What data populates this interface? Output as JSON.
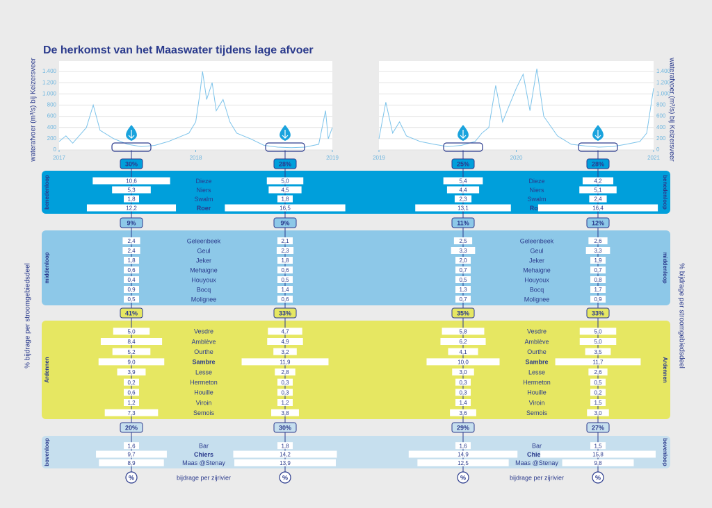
{
  "title": "De herkomst van het Maaswater tijdens lage afvoer",
  "side_label": "% bijdrage per stroomgebiedsdeel",
  "footer": {
    "symbol": "%",
    "label": "bijdrage per zijrivier"
  },
  "chart_data": [
    {
      "type": "line",
      "ylabel": "waterafvoer (m³/s) bij Keizersveer",
      "color": "#7cc3ea",
      "grid": true,
      "xlim": [
        2017,
        2019
      ],
      "xticks": [
        2017,
        2018,
        2019
      ],
      "ylim": [
        0,
        1400
      ],
      "yticks": [
        0,
        200,
        400,
        600,
        800,
        {
          "value": 1000,
          "label": "1.000"
        },
        {
          "value": 1200,
          "label": "1.200"
        },
        {
          "value": 1400,
          "label": "1.400"
        }
      ],
      "x": [
        2017.0,
        2017.05,
        2017.1,
        2017.2,
        2017.25,
        2017.3,
        2017.4,
        2017.5,
        2017.6,
        2017.7,
        2017.8,
        2017.9,
        2017.95,
        2018.0,
        2018.03,
        2018.05,
        2018.08,
        2018.12,
        2018.15,
        2018.2,
        2018.25,
        2018.3,
        2018.4,
        2018.5,
        2018.6,
        2018.7,
        2018.8,
        2018.9,
        2018.95,
        2018.97,
        2019.0
      ],
      "values": [
        150,
        250,
        120,
        400,
        800,
        350,
        200,
        100,
        60,
        80,
        150,
        250,
        300,
        500,
        1000,
        1400,
        900,
        1200,
        700,
        900,
        500,
        300,
        200,
        80,
        50,
        40,
        50,
        100,
        700,
        200,
        400
      ]
    },
    {
      "type": "line",
      "ylabel": "waterafvoer (m³/s) bij Keizersveer",
      "color": "#7cc3ea",
      "grid": true,
      "xlim": [
        2019,
        2021
      ],
      "xticks": [
        2019,
        2020,
        2021
      ],
      "ylim": [
        0,
        1400
      ],
      "yticks": [
        0,
        200,
        400,
        600,
        800,
        {
          "value": 1000,
          "label": "1.000"
        },
        {
          "value": 1200,
          "label": "1.200"
        },
        {
          "value": 1400,
          "label": "1.400"
        }
      ],
      "x": [
        2019.0,
        2019.05,
        2019.1,
        2019.15,
        2019.2,
        2019.3,
        2019.4,
        2019.5,
        2019.6,
        2019.7,
        2019.75,
        2019.8,
        2019.85,
        2019.9,
        2019.95,
        2020.0,
        2020.05,
        2020.1,
        2020.15,
        2020.2,
        2020.3,
        2020.4,
        2020.5,
        2020.6,
        2020.7,
        2020.8,
        2020.9,
        2020.95,
        2021.0
      ],
      "values": [
        200,
        850,
        300,
        500,
        250,
        150,
        100,
        60,
        80,
        150,
        300,
        400,
        1150,
        500,
        800,
        1100,
        1350,
        700,
        1450,
        600,
        250,
        100,
        70,
        50,
        60,
        100,
        150,
        300,
        1100
      ]
    }
  ],
  "sections": [
    {
      "name": "benedenloop",
      "color": "#009fdb",
      "side": "both",
      "totals": {
        "values": [
          30,
          28,
          25,
          28
        ],
        "value_labels": [
          "30%",
          "28%",
          "25%",
          "28%"
        ]
      },
      "rivers": [
        {
          "name": "Dieze",
          "values": [
            10.6,
            5.0,
            5.4,
            4.2
          ],
          "value_labels": [
            "10,6",
            "5,0",
            "5,4",
            "4,2"
          ]
        },
        {
          "name": "Niers",
          "values": [
            5.3,
            4.5,
            4.4,
            5.1
          ],
          "value_labels": [
            "5,3",
            "4,5",
            "4,4",
            "5,1"
          ]
        },
        {
          "name": "Swalm",
          "values": [
            1.8,
            1.8,
            2.3,
            2.4
          ],
          "value_labels": [
            "1,8",
            "1,8",
            "2,3",
            "2,4"
          ]
        },
        {
          "name": "Roer",
          "emphasis": true,
          "values": [
            12.2,
            16.5,
            13.1,
            16.4
          ],
          "value_labels": [
            "12,2",
            "16,5",
            "13,1",
            "16,4"
          ]
        }
      ]
    },
    {
      "name": "middenloop",
      "color": "#8dc8e8",
      "side": "both",
      "totals": {
        "values": [
          9,
          9,
          11,
          12
        ],
        "value_labels": [
          "9%",
          "9%",
          "11%",
          "12%"
        ]
      },
      "rivers": [
        {
          "name": "Geleenbeek",
          "values": [
            2.4,
            2.1,
            2.5,
            2.6
          ],
          "value_labels": [
            "2,4",
            "2,1",
            "2,5",
            "2,6"
          ]
        },
        {
          "name": "Geul",
          "values": [
            2.4,
            2.3,
            3.3,
            3.3
          ],
          "value_labels": [
            "2,4",
            "2,3",
            "3,3",
            "3,3"
          ]
        },
        {
          "name": "Jeker",
          "values": [
            1.8,
            1.8,
            2.0,
            1.9
          ],
          "value_labels": [
            "1,8",
            "1,8",
            "2,0",
            "1,9"
          ]
        },
        {
          "name": "Mehaigne",
          "values": [
            0.6,
            0.6,
            0.7,
            0.7
          ],
          "value_labels": [
            "0,6",
            "0,6",
            "0,7",
            "0,7"
          ]
        },
        {
          "name": "Houyoux",
          "values": [
            0.4,
            0.5,
            0.5,
            0.8
          ],
          "value_labels": [
            "0,4",
            "0,5",
            "0,5",
            "0,8"
          ]
        },
        {
          "name": "Bocq",
          "values": [
            0.9,
            1.4,
            1.3,
            1.7
          ],
          "value_labels": [
            "0,9",
            "1,4",
            "1,3",
            "1,7"
          ]
        },
        {
          "name": "Molignee",
          "values": [
            0.5,
            0.6,
            0.7,
            0.9
          ],
          "value_labels": [
            "0,5",
            "0,6",
            "0,7",
            "0,9"
          ]
        }
      ]
    },
    {
      "name": "Ardennen",
      "color": "#e6e762",
      "side": "both",
      "totals": {
        "values": [
          41,
          33,
          35,
          33
        ],
        "value_labels": [
          "41%",
          "33%",
          "35%",
          "33%"
        ]
      },
      "rivers": [
        {
          "name": "Vesdre",
          "values": [
            5.0,
            4.7,
            5.8,
            5.0
          ],
          "value_labels": [
            "5,0",
            "4,7",
            "5,8",
            "5,0"
          ]
        },
        {
          "name": "Amblève",
          "values": [
            8.4,
            4.9,
            6.2,
            5.0
          ],
          "value_labels": [
            "8,4",
            "4,9",
            "6,2",
            "5,0"
          ]
        },
        {
          "name": "Ourthe",
          "values": [
            5.2,
            3.2,
            4.1,
            3.5
          ],
          "value_labels": [
            "5,2",
            "3,2",
            "4,1",
            "3,5"
          ]
        },
        {
          "name": "Sambre",
          "emphasis": true,
          "values": [
            9.0,
            11.9,
            10.0,
            11.7
          ],
          "value_labels": [
            "9,0",
            "11,9",
            "10,0",
            "11,7"
          ]
        },
        {
          "name": "Lesse",
          "values": [
            3.9,
            2.8,
            3.0,
            2.6
          ],
          "value_labels": [
            "3,9",
            "2,8",
            "3,0",
            "2,6"
          ]
        },
        {
          "name": "Hermeton",
          "values": [
            0.2,
            0.3,
            0.3,
            0.5
          ],
          "value_labels": [
            "0,2",
            "0,3",
            "0,3",
            "0,5"
          ]
        },
        {
          "name": "Houille",
          "values": [
            0.6,
            0.3,
            0.3,
            0.2
          ],
          "value_labels": [
            "0,6",
            "0,3",
            "0,3",
            "0,2"
          ]
        },
        {
          "name": "Viroin",
          "values": [
            1.2,
            1.2,
            1.4,
            1.5
          ],
          "value_labels": [
            "1,2",
            "1,2",
            "1,4",
            "1,5"
          ]
        },
        {
          "name": "Semois",
          "values": [
            7.3,
            3.8,
            3.6,
            3.0
          ],
          "value_labels": [
            "7,3",
            "3,8",
            "3,6",
            "3,0"
          ]
        }
      ]
    },
    {
      "name": "bovenloop",
      "color": "#c6dfee",
      "side": "both",
      "totals": {
        "values": [
          20,
          30,
          29,
          27
        ],
        "value_labels": [
          "20%",
          "30%",
          "29%",
          "27%"
        ]
      },
      "rivers": [
        {
          "name": "Bar",
          "values": [
            1.6,
            1.8,
            1.6,
            1.5
          ],
          "value_labels": [
            "1,6",
            "1,8",
            "1,6",
            "1,5"
          ]
        },
        {
          "name": "Chiers",
          "emphasis": true,
          "values": [
            9.7,
            14.2,
            14.9,
            15.8
          ],
          "value_labels": [
            "9,7",
            "14,2",
            "14,9",
            "15,8"
          ]
        },
        {
          "name": "Maas @Stenay",
          "values": [
            8.9,
            13.9,
            12.5,
            9.8
          ],
          "value_labels": [
            "8,9",
            "13,9",
            "12,5",
            "9,8"
          ]
        }
      ]
    }
  ]
}
